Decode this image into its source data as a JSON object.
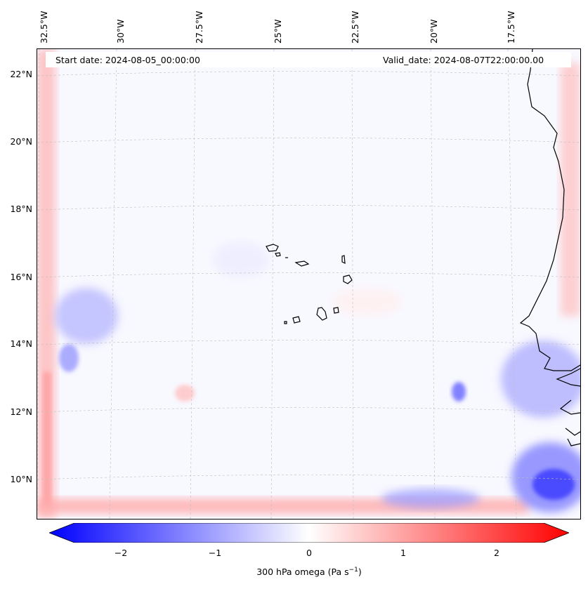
{
  "map": {
    "start_date": "Start date: 2024-08-05_00:00:00",
    "valid_date": "Valid_date: 2024-08-07T22:00:00.00",
    "lon_labels": [
      "32.5°W",
      "30°W",
      "27.5°W",
      "25°W",
      "22.5°W",
      "20°W",
      "17.5°W"
    ],
    "lat_labels": [
      "22°N",
      "20°N",
      "18°N",
      "16°N",
      "14°N",
      "12°N",
      "10°N"
    ],
    "variable": "300 hPa omega",
    "colormap": "bwr",
    "colors": {
      "negative": "#0000ff",
      "zero": "#ffffff",
      "positive": "#ff0000",
      "coastline": "#000000"
    }
  },
  "colorbar": {
    "ticks": [
      "−2",
      "−1",
      "0",
      "1",
      "2"
    ],
    "label_prefix": "300 hPa omega (Pa s",
    "label_exp": "−1",
    "label_suffix": ")",
    "min": -2.6,
    "max": 2.6
  }
}
